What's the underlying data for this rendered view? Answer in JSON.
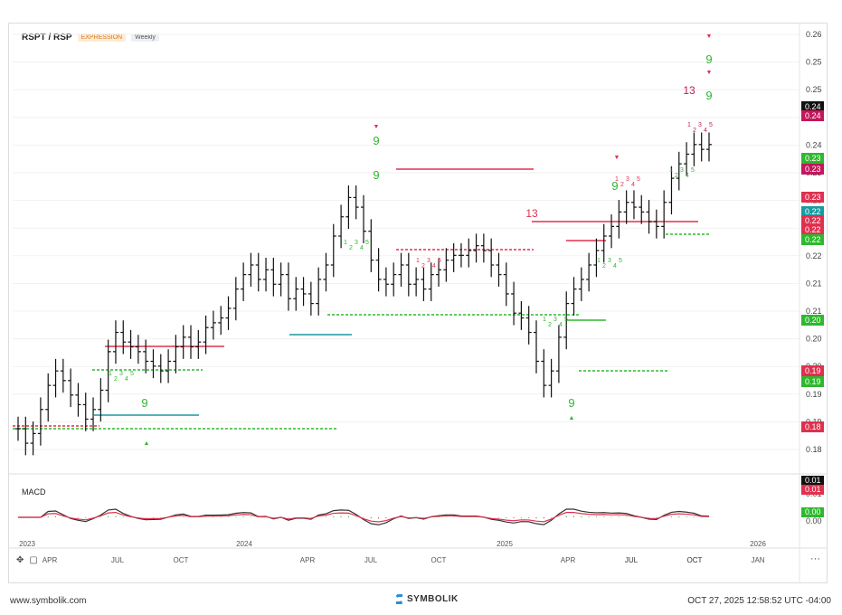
{
  "header": {
    "symbol": "RSPT / RSP",
    "badge_expansion": "EXPRESSION",
    "badge_period": "Weekly"
  },
  "macd": {
    "label": "MACD"
  },
  "footer": {
    "left": "www.symbolik.com",
    "brand": "SYMBOLIK",
    "right": "OCT 27, 2025 12:58:52 UTC -04:00"
  },
  "toolbar": {
    "more": "···"
  },
  "chart_data": {
    "type": "ohlc",
    "title": "RSPT / RSP",
    "period": "Weekly",
    "y_ticks": [
      "0.26",
      "0.25",
      "0.25",
      "0.24",
      "0.24",
      "0.23",
      "0.23",
      "0.22",
      "0.22",
      "0.21",
      "0.21",
      "0.20",
      "0.20",
      "0.19",
      "0.19",
      "0.18"
    ],
    "x_ticks": [
      "2023",
      "APR",
      "JUL",
      "OCT",
      "2024",
      "APR",
      "JUL",
      "OCT",
      "2025",
      "APR",
      "JUL",
      "OCT",
      "2026",
      "APR",
      "JUL",
      "OCT",
      "JAN"
    ],
    "series_closes": [
      0.179,
      0.176,
      0.178,
      0.183,
      0.188,
      0.191,
      0.189,
      0.186,
      0.184,
      0.181,
      0.183,
      0.187,
      0.195,
      0.199,
      0.197,
      0.196,
      0.195,
      0.193,
      0.192,
      0.191,
      0.193,
      0.196,
      0.198,
      0.196,
      0.197,
      0.2,
      0.201,
      0.202,
      0.204,
      0.208,
      0.211,
      0.213,
      0.21,
      0.212,
      0.209,
      0.211,
      0.206,
      0.208,
      0.207,
      0.205,
      0.21,
      0.213,
      0.219,
      0.223,
      0.227,
      0.225,
      0.22,
      0.214,
      0.21,
      0.209,
      0.211,
      0.213,
      0.209,
      0.21,
      0.208,
      0.211,
      0.212,
      0.214,
      0.215,
      0.215,
      0.216,
      0.217,
      0.216,
      0.213,
      0.211,
      0.207,
      0.203,
      0.202,
      0.199,
      0.193,
      0.188,
      0.191,
      0.198,
      0.205,
      0.208,
      0.21,
      0.213,
      0.216,
      0.219,
      0.221,
      0.224,
      0.226,
      0.225,
      0.224,
      0.222,
      0.221,
      0.226,
      0.231,
      0.234,
      0.236,
      0.238,
      0.237,
      0.238
    ],
    "price_labels": [
      {
        "text": "0.24",
        "color": "#111111"
      },
      {
        "text": "0.24",
        "color": "#c2185b"
      },
      {
        "text": "0.23",
        "color": "#2eb82e"
      },
      {
        "text": "0.23",
        "color": "#c2185b"
      },
      {
        "text": "0.23",
        "color": "#e0304e"
      },
      {
        "text": "0.22",
        "color": "#1a9aa0"
      },
      {
        "text": "0.22",
        "color": "#e0304e"
      },
      {
        "text": "0.22",
        "color": "#e0304e"
      },
      {
        "text": "0.22",
        "color": "#2eb82e"
      },
      {
        "text": "0.20",
        "color": "#2eb82e"
      },
      {
        "text": "0.19",
        "color": "#e0304e"
      },
      {
        "text": "0.19",
        "color": "#2eb82e"
      },
      {
        "text": "0.18",
        "color": "#e0304e"
      }
    ],
    "macd_ticks": [
      "0.01",
      "0.01",
      "0.00",
      "0.00"
    ],
    "macd_labels": [
      {
        "text": "0.01",
        "color": "#111111"
      },
      {
        "text": "0.01",
        "color": "#e0304e"
      },
      {
        "text": "0.00",
        "color": "#2eb82e"
      }
    ],
    "annotations": [
      "13",
      "13",
      "13",
      "9",
      "9",
      "9",
      "9",
      "9",
      "9"
    ],
    "colors": {
      "up": "#2eb82e",
      "down": "#e0304e",
      "teal": "#1a9aa0",
      "magenta": "#c2185b",
      "macd": "#333333",
      "signal": "#e0304e"
    }
  }
}
